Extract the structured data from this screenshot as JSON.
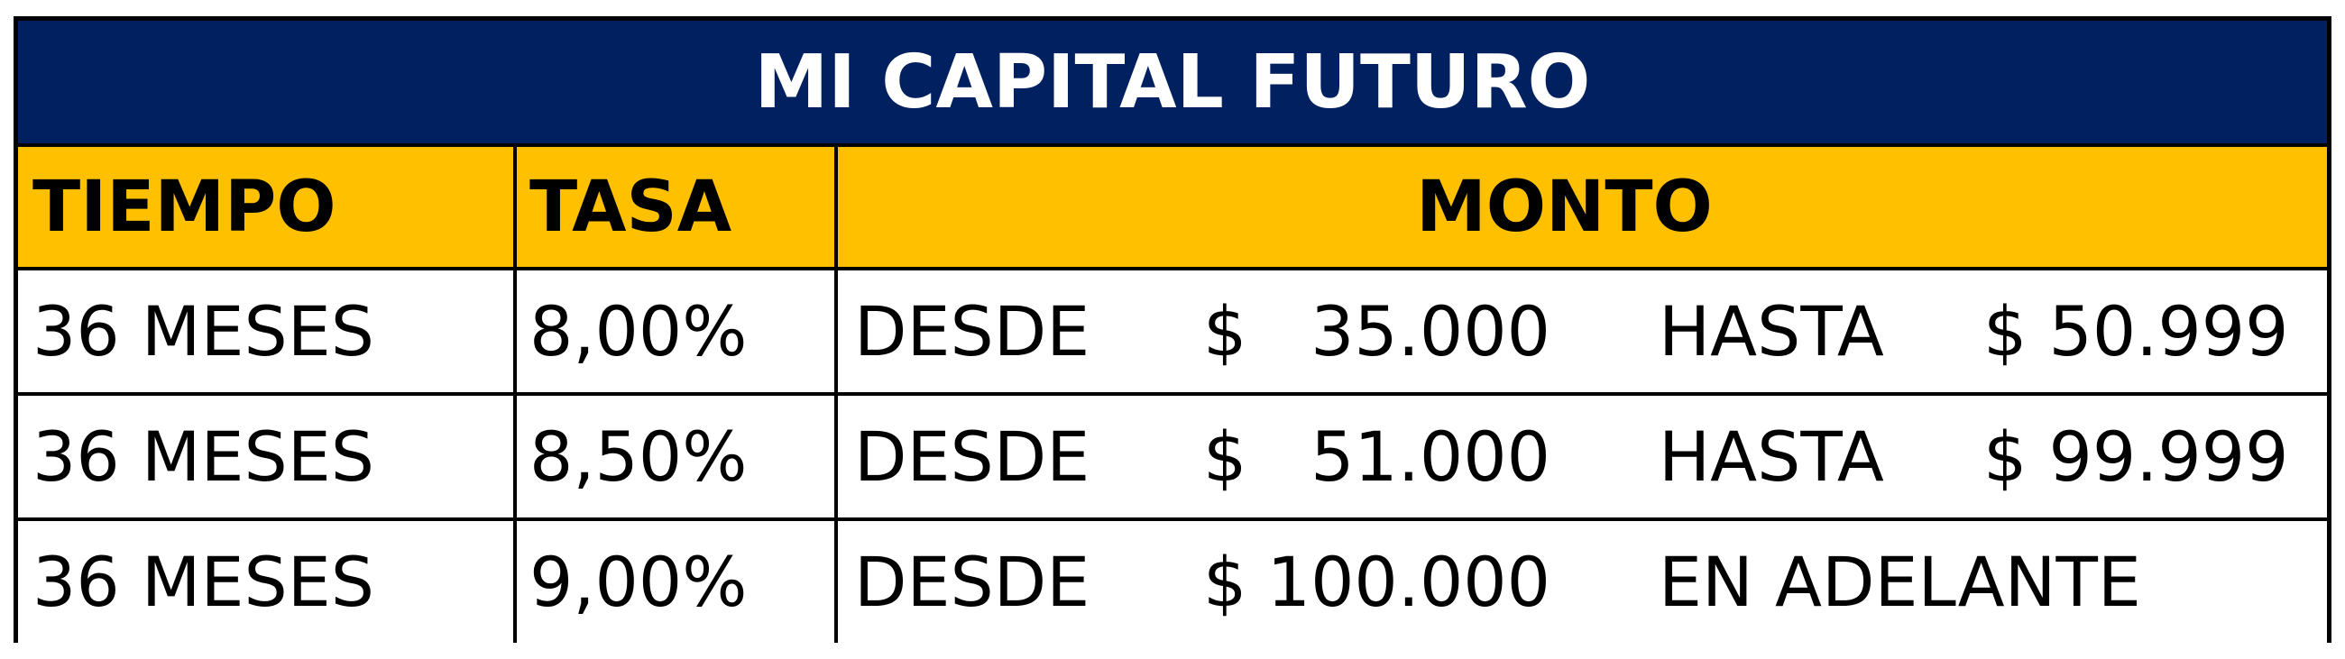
{
  "table": {
    "title": "MI CAPITAL FUTURO",
    "headers": {
      "tiempo": "TIEMPO",
      "tasa": "TASA",
      "monto": "MONTO"
    },
    "rows": [
      {
        "tiempo": "36 MESES",
        "tasa": "8,00%",
        "desde_label": "DESDE",
        "currency": "$",
        "desde_amount": "35.000",
        "hasta_label": "HASTA",
        "hasta_amount": "$ 50.999"
      },
      {
        "tiempo": "36 MESES",
        "tasa": "8,50%",
        "desde_label": "DESDE",
        "currency": "$",
        "desde_amount": "51.000",
        "hasta_label": "HASTA",
        "hasta_amount": "$ 99.999"
      },
      {
        "tiempo": "36 MESES",
        "tasa": "9,00%",
        "desde_label": "DESDE",
        "currency": "$",
        "desde_amount": "100.000",
        "hasta_label": "EN ADELANTE",
        "hasta_amount": ""
      }
    ]
  },
  "colors": {
    "title_background": "#002060",
    "title_text": "#FFFFFF",
    "header_background": "#FFC000",
    "border": "#000000",
    "cell_background": "#FFFFFF"
  }
}
